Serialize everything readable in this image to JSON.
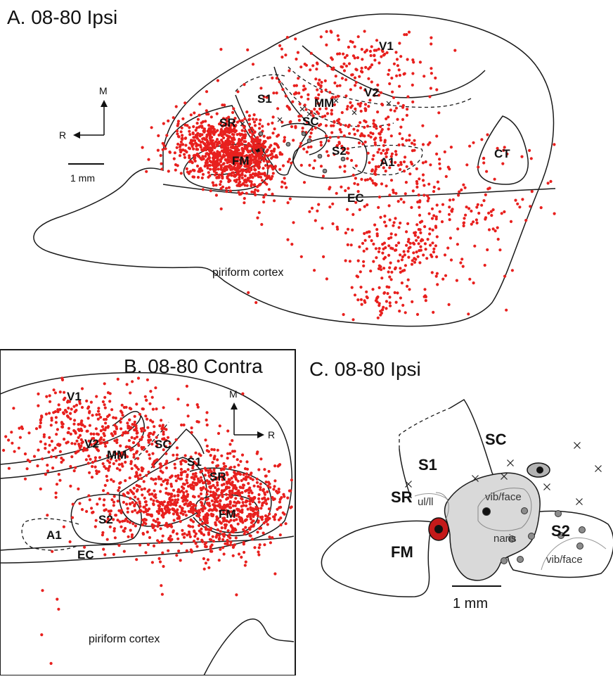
{
  "panels": {
    "a": {
      "title": "A. 08-80 Ipsi",
      "labels": {
        "v1": "V1",
        "v2": "V2",
        "mm": "MM",
        "s1": "S1",
        "sr": "SR",
        "sc": "SC",
        "fm": "FM",
        "s2": "S2",
        "a1": "A1",
        "ct": "CT",
        "ec": "EC",
        "piriform": "piriform cortex"
      },
      "compass": {
        "m": "M",
        "r": "R"
      },
      "scale_label": "1 mm"
    },
    "b": {
      "title": "B. 08-80 Contra",
      "labels": {
        "v1": "V1",
        "v2": "V2",
        "mm": "MM",
        "sc": "SC",
        "s1": "S1",
        "sr": "SR",
        "fm": "FM",
        "s2": "S2",
        "a1": "A1",
        "ec": "EC",
        "piriform": "piriform cortex"
      },
      "compass": {
        "m": "M",
        "r": "R"
      }
    },
    "c": {
      "title": "C. 08-80 Ipsi",
      "labels": {
        "s1": "S1",
        "sc": "SC",
        "sr": "SR",
        "fm": "FM",
        "s2": "S2",
        "ul_ll": "ul/ll",
        "vib_face_1": "vib/face",
        "naris": "naris",
        "vib_face_2": "vib/face"
      },
      "scale_label": "1 mm"
    }
  },
  "colors": {
    "cells": "#e8201e",
    "injection": "#c41a1a",
    "region_fill": "#d9d9d9",
    "marker_gray": "#8c8c8c",
    "marker_black": "#111111",
    "stroke": "#1a1a1a"
  }
}
